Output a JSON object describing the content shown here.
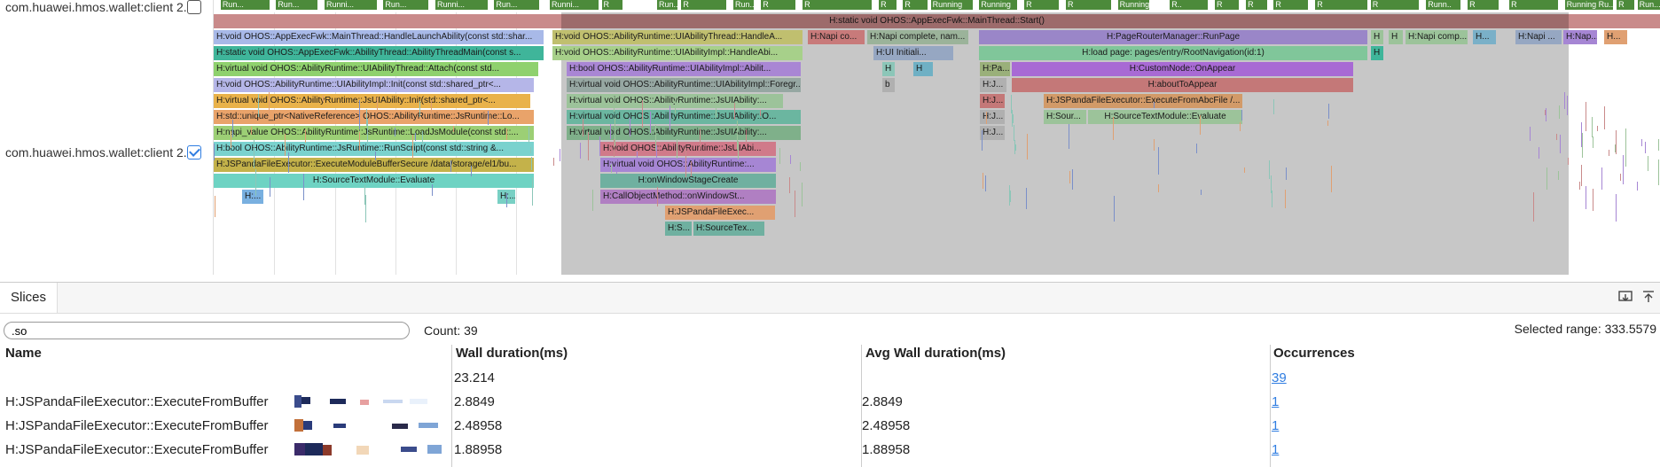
{
  "threads": [
    {
      "label": "com.huawei.hmos.wallet:client 2...",
      "checked": false
    },
    {
      "label": "com.huawei.hmos.wallet:client 2...",
      "checked": true
    }
  ],
  "cpu_states": [
    "Run...",
    "Run...",
    "Runni...",
    "Run...",
    "Runni...",
    "Run...",
    "Runni...",
    "R",
    "Run...",
    "R",
    "Run...",
    "R",
    "R",
    "R",
    "R",
    "Running",
    "Running",
    "R",
    "R",
    "Running",
    "R..",
    "R",
    "R",
    "R",
    "R",
    "R",
    "Runn..",
    "R",
    "R",
    "Running Ru...",
    "R",
    "Run..."
  ],
  "main_slice": "H:static void OHOS::AppExecFwk::MainThread::Start()",
  "slices": {
    "s1": "H:void OHOS::AppExecFwk::MainThread::HandleLaunchAbility(const std::shar...",
    "s2": "H:static void OHOS::AppExecFwk::AbilityThread::AbilityThreadMain(const s...",
    "s3": "H:virtual void OHOS::AbilityRuntime::UIAbilityThread::Attach(const std...",
    "s4": "H:void OHOS::AbilityRuntime::UIAbilityImpl::Init(const std::shared_ptr<...",
    "s5": "H:virtual void OHOS::AbilityRuntime::JsUIAbility::Init(std::shared_ptr<...",
    "s6": "H:std::unique_ptr<NativeReference> OHOS::AbilityRuntime::JsRuntime::Lo...",
    "s7": "H:napi_value OHOS::AbilityRuntime::JsRuntime::LoadJsModule(const std::...",
    "s8": "H:bool OHOS::AbilityRuntime::JsRuntime::RunScript(const std::string &...",
    "s9": "H:JSPandaFileExecutor::ExecuteModuleBufferSecure /data/storage/el1/bu...",
    "s10": "H:SourceTextModule::Evaluate",
    "s11": "H:...",
    "s12": "H:...",
    "m1": "H:void OHOS::AbilityRuntime::UIAbilityThread::HandleA...",
    "m2": "H:void OHOS::AbilityRuntime::UIAbilityImpl::HandleAbi...",
    "m3": "H:bool OHOS::AbilityRuntime::UIAbilityImpl::Abilit...",
    "m4": "H:virtual void OHOS::AbilityRuntime::UIAbilityImpl::Foregr...",
    "m5": "H:virtual void OHOS::AbilityRuntime::JsUIAbility:...",
    "m6": "H:virtual void OHOS::AbilityRuntime::JsUIAbility::O...",
    "m7": "H:virtual void OHOS::AbilityRuntime::JsUIAbility:...",
    "m8": "H:void OHOS::AbilityRuntime::JsUIAbi...",
    "m9": "H:virtual void OHOS::AbilityRuntime:...",
    "m10": "H:onWindowStageCreate",
    "m11": "H:CallObjectMethod::onWindowSt...",
    "m12": "H:JSPandaFileExec...",
    "m13": "H:S...",
    "m14": "H:SourceTex...",
    "n1": "H:Napi co...",
    "n2": "H:Napi complete, nam...",
    "n3": "H:UI Initiali...",
    "n4": "b",
    "n5": "H",
    "n6": "H",
    "p1": "H:PageRouterManager::RunPage",
    "p2": "H:load page: pages/entry/RootNavigation(id:1)",
    "p3": "H:CustomNode::OnAppear",
    "p4": "H:aboutToAppear",
    "p5": "H:JSPandaFileExecutor::ExecuteFromAbcFile /...",
    "p6": "H:Sour...",
    "p7": "H:SourceTextModule::Evaluate",
    "p8": "H:Pa...",
    "p9": "H:J...",
    "p10": "H:J...",
    "p11": "H:J...",
    "p12": "H:J...",
    "r1": "H",
    "r2": "H",
    "r3": "H",
    "r4": "H:Napi comp...",
    "r5": "H...",
    "r6": "H:Napi ...",
    "r7": "H:Nap...",
    "r8": "H..."
  },
  "panel": {
    "tab": "Slices",
    "search_value": ".so",
    "count": "Count: 39",
    "selected_range": "Selected range: 333.5579",
    "columns": [
      "Name",
      "Wall duration(ms)",
      "Avg Wall duration(ms)",
      "Occurrences"
    ],
    "rows": [
      {
        "name": "",
        "wall": "23.214",
        "avg": "",
        "occ": "39"
      },
      {
        "name": "H:JSPandaFileExecutor::ExecuteFromBuffer",
        "wall": "2.8849",
        "avg": "2.8849",
        "occ": "1"
      },
      {
        "name": "H:JSPandaFileExecutor::ExecuteFromBuffer",
        "wall": "2.48958",
        "avg": "2.48958",
        "occ": "1"
      },
      {
        "name": "H:JSPandaFileExecutor::ExecuteFromBuffer",
        "wall": "1.88958",
        "avg": "1.88958",
        "occ": "1"
      }
    ]
  },
  "icons": {
    "download": "download-icon",
    "pin": "pin-top-icon"
  }
}
